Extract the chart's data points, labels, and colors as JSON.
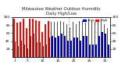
{
  "title": "Milwaukee Weather Outdoor Humidity",
  "subtitle": "Daily High/Low",
  "background_color": "#ffffff",
  "high_color": "#ff0000",
  "low_color": "#0000bb",
  "ylim": [
    0,
    100
  ],
  "legend_high": "High",
  "legend_low": "Low",
  "n_days": 31,
  "highs": [
    95,
    85,
    88,
    95,
    72,
    95,
    95,
    92,
    90,
    62,
    82,
    90,
    88,
    88,
    88,
    90,
    88,
    82,
    75,
    88,
    82,
    90,
    90,
    85,
    95,
    90,
    88,
    92,
    95,
    82,
    72
  ],
  "lows": [
    40,
    28,
    42,
    32,
    22,
    52,
    58,
    38,
    38,
    28,
    32,
    48,
    52,
    48,
    52,
    58,
    52,
    42,
    42,
    48,
    48,
    42,
    52,
    52,
    32,
    32,
    32,
    52,
    62,
    58,
    32
  ],
  "dashed_after": 18,
  "yticks": [
    20,
    40,
    60,
    80,
    100
  ],
  "ytick_labels": [
    "20",
    "40",
    "60",
    "80",
    "100"
  ]
}
